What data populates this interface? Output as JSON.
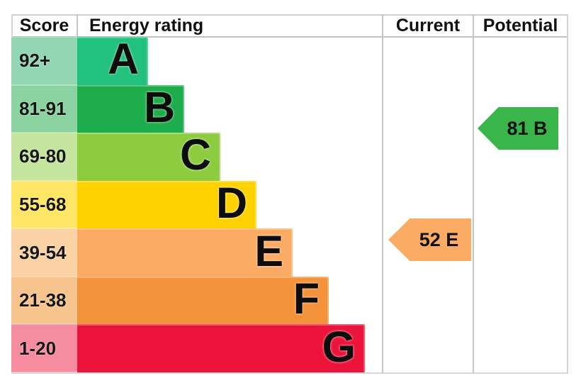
{
  "header": {
    "score": "Score",
    "energy_rating": "Energy rating",
    "current": "Current",
    "potential": "Potential"
  },
  "chart_data": {
    "type": "bar",
    "title": "EPC energy efficiency rating chart",
    "categories": [
      "A",
      "B",
      "C",
      "D",
      "E",
      "F",
      "G"
    ],
    "bands": [
      {
        "letter": "A",
        "score_range": "92+",
        "bar_color": "#23c17e",
        "cell_color": "#93d6b4"
      },
      {
        "letter": "B",
        "score_range": "81-91",
        "bar_color": "#1ead4d",
        "cell_color": "#8bd3a0"
      },
      {
        "letter": "C",
        "score_range": "69-80",
        "bar_color": "#8dcc3f",
        "cell_color": "#c5e59e"
      },
      {
        "letter": "D",
        "score_range": "55-68",
        "bar_color": "#fdd200",
        "cell_color": "#ffe765"
      },
      {
        "letter": "E",
        "score_range": "39-54",
        "bar_color": "#fbab64",
        "cell_color": "#fbd2a4"
      },
      {
        "letter": "F",
        "score_range": "21-38",
        "bar_color": "#f3923a",
        "cell_color": "#f8c48e"
      },
      {
        "letter": "G",
        "score_range": "1-20",
        "bar_color": "#ed143c",
        "cell_color": "#f68ca0"
      }
    ],
    "current": {
      "score": 52,
      "band": "E",
      "label": "52 E",
      "color": "#fbab64"
    },
    "potential": {
      "score": 81,
      "band": "B",
      "label": "81 B",
      "color": "#3ab54a"
    },
    "layout_hints": {
      "bars_grow_downward": true,
      "arrows_point_left": true,
      "grid": "table-lines"
    }
  }
}
